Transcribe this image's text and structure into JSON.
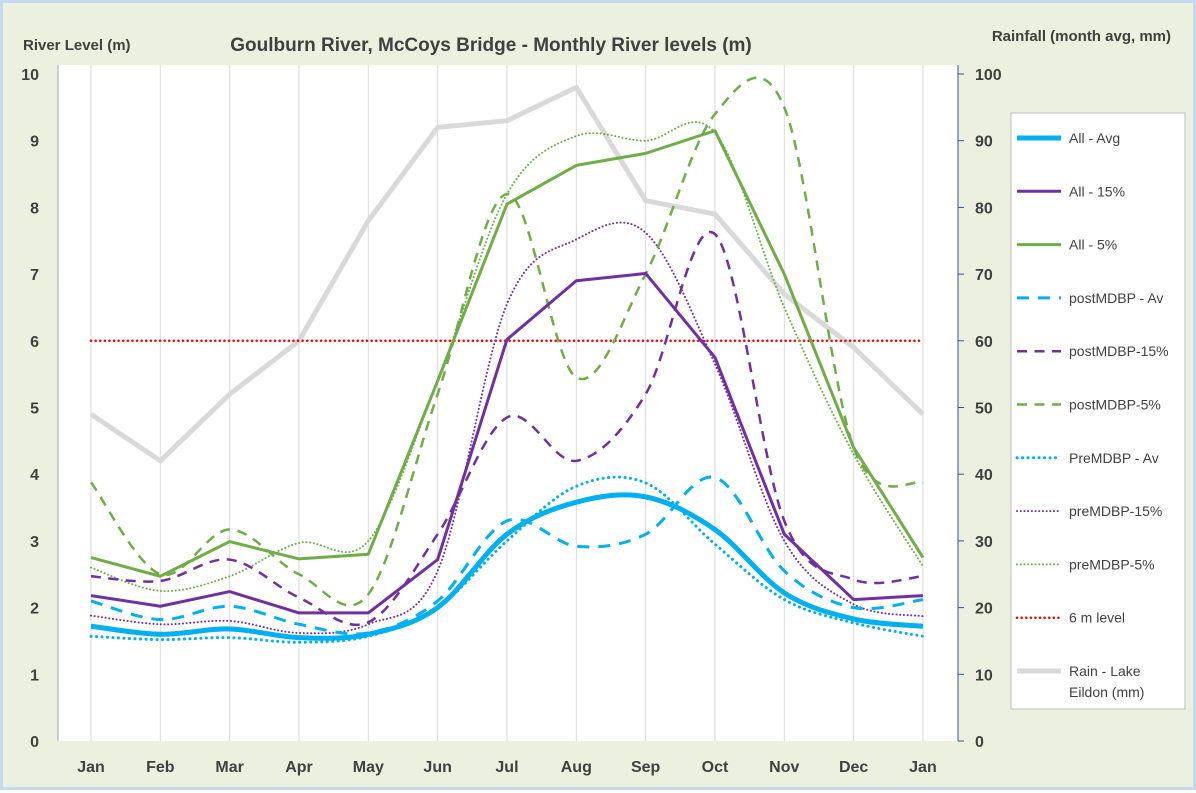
{
  "chart_data": {
    "type": "line",
    "title": "Goulburn River, McCoys Bridge - Monthly River levels (m)",
    "ylabel": "River Level (m)",
    "y2label": "Rainfall (month avg, mm)",
    "categories": [
      "Jan",
      "Feb",
      "Mar",
      "Apr",
      "May",
      "Jun",
      "Jul",
      "Aug",
      "Sep",
      "Oct",
      "Nov",
      "Dec",
      "Jan"
    ],
    "ylim": [
      0,
      10
    ],
    "y2lim": [
      0,
      100
    ],
    "yticks": [
      0,
      1,
      2,
      3,
      4,
      5,
      6,
      7,
      8,
      9,
      10
    ],
    "y2ticks": [
      0,
      10,
      20,
      30,
      40,
      50,
      60,
      70,
      80,
      90,
      100
    ],
    "grid": "vertical",
    "legend_position": "right",
    "series": [
      {
        "name": "All - Avg",
        "color": "#00b0f0",
        "style": "solid",
        "width": 5,
        "smooth": true,
        "axis": "left",
        "values": [
          1.72,
          1.6,
          1.68,
          1.55,
          1.6,
          2.0,
          3.1,
          3.58,
          3.66,
          3.17,
          2.22,
          1.83,
          1.72
        ]
      },
      {
        "name": "All - 15%",
        "color": "#7030a0",
        "style": "solid",
        "width": 3,
        "smooth": false,
        "axis": "left",
        "values": [
          2.18,
          2.02,
          2.24,
          1.92,
          1.92,
          2.72,
          6.02,
          6.9,
          7.01,
          5.75,
          3.1,
          2.12,
          2.18
        ]
      },
      {
        "name": "All - 5%",
        "color": "#70ad47",
        "style": "solid",
        "width": 3,
        "smooth": false,
        "axis": "left",
        "values": [
          2.75,
          2.47,
          2.99,
          2.73,
          2.8,
          5.4,
          8.05,
          8.63,
          8.81,
          9.15,
          7.0,
          4.4,
          2.75
        ]
      },
      {
        "name": "postMDBP - Av",
        "color": "#00b0f0",
        "style": "dash",
        "width": 3,
        "smooth": true,
        "axis": "left",
        "values": [
          2.1,
          1.82,
          2.02,
          1.75,
          1.62,
          2.1,
          3.3,
          2.92,
          3.1,
          3.95,
          2.55,
          2.0,
          2.12
        ]
      },
      {
        "name": "postMDBP-15%",
        "color": "#7030a0",
        "style": "dash",
        "width": 2.5,
        "smooth": true,
        "axis": "left",
        "values": [
          2.47,
          2.4,
          2.72,
          2.15,
          1.78,
          3.1,
          4.85,
          4.2,
          5.2,
          7.6,
          3.3,
          2.42,
          2.47
        ]
      },
      {
        "name": "postMDBP-5%",
        "color": "#70ad47",
        "style": "dash",
        "width": 2.5,
        "smooth": true,
        "axis": "left",
        "values": [
          3.88,
          2.5,
          3.17,
          2.5,
          2.2,
          5.2,
          8.2,
          5.45,
          7.0,
          9.4,
          9.5,
          4.4,
          3.87
        ]
      },
      {
        "name": "PreMDBP - Av",
        "color": "#00b0f0",
        "style": "dot",
        "width": 3,
        "smooth": true,
        "axis": "left",
        "values": [
          1.57,
          1.52,
          1.55,
          1.48,
          1.57,
          2.0,
          3.0,
          3.82,
          3.87,
          2.95,
          2.12,
          1.77,
          1.57
        ]
      },
      {
        "name": "preMDBP-15%",
        "color": "#7030a0",
        "style": "dot",
        "width": 2,
        "smooth": true,
        "axis": "left",
        "values": [
          1.88,
          1.75,
          1.8,
          1.62,
          1.75,
          2.55,
          6.55,
          7.52,
          7.62,
          5.65,
          3.0,
          2.05,
          1.87
        ]
      },
      {
        "name": "preMDBP-5%",
        "color": "#70ad47",
        "style": "dot",
        "width": 2,
        "smooth": true,
        "axis": "left",
        "values": [
          2.6,
          2.25,
          2.47,
          2.97,
          3.0,
          5.4,
          8.2,
          9.07,
          9.0,
          9.12,
          6.5,
          4.3,
          2.62
        ]
      },
      {
        "name": "6 m level",
        "color": "#ff0000",
        "style": "dot",
        "width": 2.5,
        "smooth": false,
        "axis": "left",
        "values": [
          6,
          6,
          6,
          6,
          6,
          6,
          6,
          6,
          6,
          6,
          6,
          6,
          6
        ]
      },
      {
        "name": "Rain - Lake Eildon (mm)",
        "color": "#d9d9d9",
        "style": "solid",
        "width": 5,
        "smooth": false,
        "axis": "right",
        "values": [
          49,
          42,
          52,
          60,
          78,
          92,
          93,
          98,
          81,
          79,
          67,
          59,
          49
        ]
      }
    ]
  }
}
